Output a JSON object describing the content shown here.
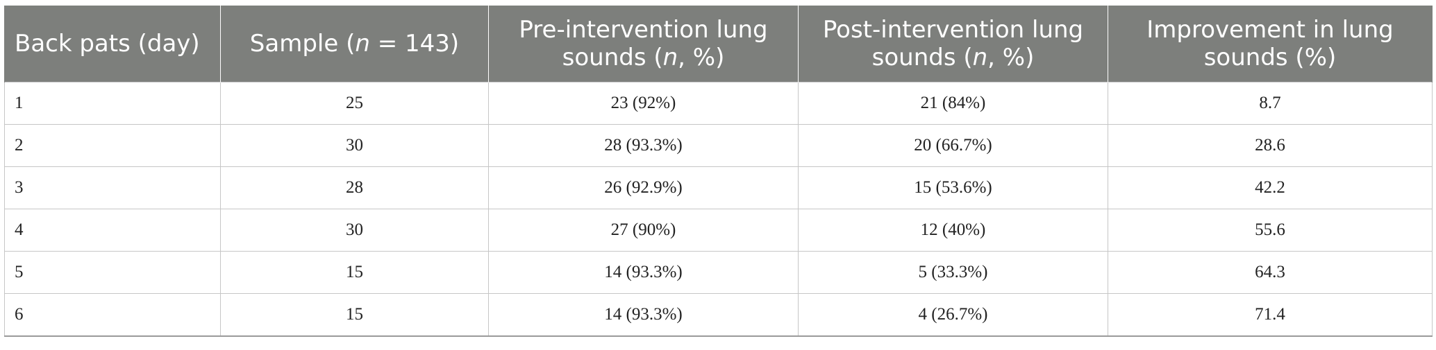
{
  "table": {
    "headers": [
      {
        "pre": "Back pats (day)",
        "it": "",
        "post": ""
      },
      {
        "pre": "Sample (",
        "it": "n",
        "post": " = 143)"
      },
      {
        "pre": "Pre-intervention lung sounds (",
        "it": "n",
        "post": ", %)"
      },
      {
        "pre": "Post-intervention lung sounds (",
        "it": "n",
        "post": ", %)"
      },
      {
        "pre": "Improvement in lung sounds (%)",
        "it": "",
        "post": ""
      }
    ],
    "rows": [
      [
        "1",
        "25",
        "23 (92%)",
        "21 (84%)",
        "8.7"
      ],
      [
        "2",
        "30",
        "28 (93.3%)",
        "20 (66.7%)",
        "28.6"
      ],
      [
        "3",
        "28",
        "26 (92.9%)",
        "15 (53.6%)",
        "42.2"
      ],
      [
        "4",
        "30",
        "27 (90%)",
        "12 (40%)",
        "55.6"
      ],
      [
        "5",
        "15",
        "14 (93.3%)",
        "5 (33.3%)",
        "64.3"
      ],
      [
        "6",
        "15",
        "14 (93.3%)",
        "4 (26.7%)",
        "71.4"
      ]
    ]
  }
}
